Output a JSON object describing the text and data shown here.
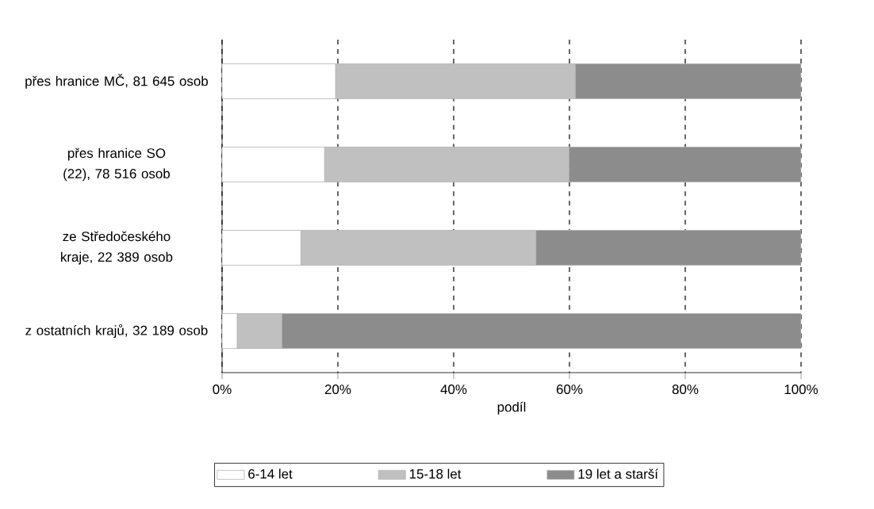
{
  "chart_data": {
    "type": "bar",
    "orientation": "horizontal",
    "stacked": true,
    "xlabel": "podíl",
    "categories": [
      "přes hranice MČ, 81 645 osob",
      "přes hranice SO (22), 78 516 osob",
      "ze Středočeského kraje, 22 389 osob",
      "z ostatních krajů, 32 189 osob"
    ],
    "series": [
      {
        "name": "6-14 let",
        "color": "#ffffff",
        "values": [
          19.6,
          17.7,
          13.6,
          2.6
        ]
      },
      {
        "name": "15-18 let",
        "color": "#c0c0c0",
        "values": [
          41.4,
          42.2,
          40.6,
          7.7
        ]
      },
      {
        "name": "19 let a starší",
        "color": "#8c8c8c",
        "values": [
          39.0,
          40.1,
          45.8,
          89.7
        ]
      }
    ],
    "xlim": [
      0,
      100
    ],
    "xticks": [
      {
        "value": 0,
        "label": "0%"
      },
      {
        "value": 20,
        "label": "20%"
      },
      {
        "value": 40,
        "label": "40%"
      },
      {
        "value": 60,
        "label": "60%"
      },
      {
        "value": 80,
        "label": "80%"
      },
      {
        "value": 100,
        "label": "100%"
      }
    ],
    "grid": "x",
    "legend": "bottom"
  }
}
